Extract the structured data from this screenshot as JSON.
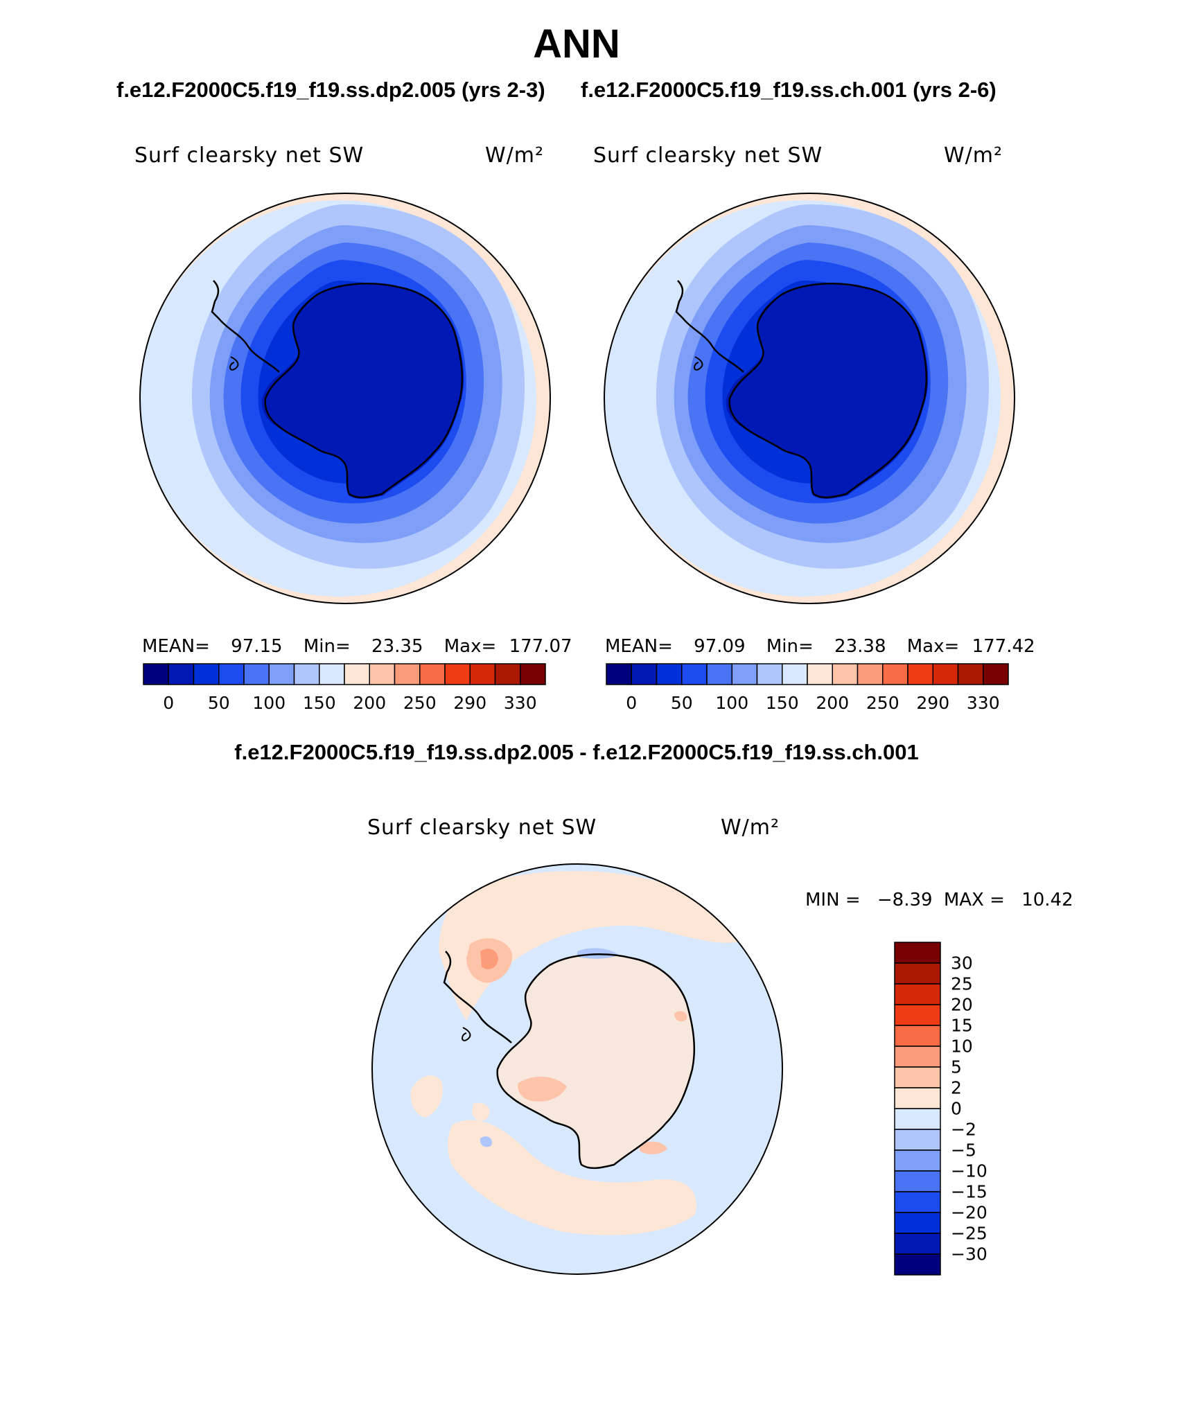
{
  "title": "ANN",
  "panels": [
    {
      "case_title": "f.e12.F2000C5.f19_f19.ss.dp2.005 (yrs 2-3)",
      "variable": "Surf clearsky net SW",
      "units": "W/m²",
      "stats": {
        "mean_label": "MEAN=",
        "mean": "97.15",
        "min_label": "Min=",
        "min": "23.35",
        "max_label": "Max=",
        "max": "177.07"
      }
    },
    {
      "case_title": "f.e12.F2000C5.f19_f19.ss.ch.001 (yrs 2-6)",
      "variable": "Surf clearsky net SW",
      "units": "W/m²",
      "stats": {
        "mean_label": "MEAN=",
        "mean": "97.09",
        "min_label": "Min=",
        "min": "23.38",
        "max_label": "Max=",
        "max": "177.42"
      }
    }
  ],
  "colorbar": {
    "tick_labels": [
      "0",
      "50",
      "100",
      "150",
      "200",
      "250",
      "290",
      "330"
    ],
    "colors": [
      "#00007e",
      "#0018b4",
      "#0030d8",
      "#1c4cf0",
      "#4a74f4",
      "#7e9ef8",
      "#aec6fc",
      "#d8e8fe",
      "#fde6d6",
      "#fdc4aa",
      "#fc9c7a",
      "#f86c46",
      "#f03c14",
      "#d42808",
      "#aa1804",
      "#780000"
    ]
  },
  "difference": {
    "title": "f.e12.F2000C5.f19_f19.ss.dp2.005 - f.e12.F2000C5.f19_f19.ss.ch.001",
    "variable": "Surf clearsky net SW",
    "units": "W/m²",
    "stats": {
      "min_label": "MIN =",
      "min": "−8.39",
      "max_label": "MAX =",
      "max": "10.42"
    },
    "colorbar_labels": [
      "30",
      "25",
      "20",
      "15",
      "10",
      "5",
      "2",
      "0",
      "−2",
      "−5",
      "−10",
      "−15",
      "−20",
      "−25",
      "−30"
    ],
    "colors": [
      "#780000",
      "#aa1804",
      "#d42808",
      "#f03c14",
      "#f86c46",
      "#fc9c7a",
      "#fdc4aa",
      "#fde6d6",
      "#d8e8fe",
      "#aec6fc",
      "#7e9ef8",
      "#4a74f4",
      "#1c4cf0",
      "#0030d8",
      "#0018b4",
      "#00007e"
    ]
  }
}
